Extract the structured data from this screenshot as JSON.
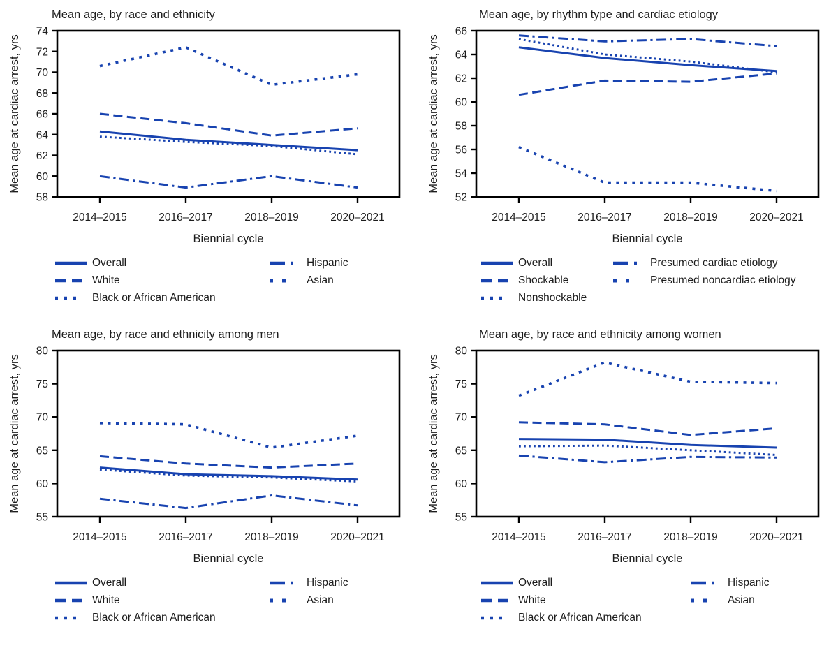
{
  "figure": {
    "background": "#ffffff",
    "line_color": "#1843b0",
    "text_color": "#1c1c1c",
    "axis_color": "#000000"
  },
  "chart_data": [
    {
      "type": "line",
      "title": "Mean age, by race and ethnicity",
      "xlabel": "Biennial cycle",
      "ylabel": "Mean age at cardiac arrest, yrs",
      "x": [
        "2014–2015",
        "2016–2017",
        "2018–2019",
        "2020–2021"
      ],
      "ylim": [
        58,
        74
      ],
      "yticks": [
        58,
        60,
        62,
        64,
        66,
        68,
        70,
        72,
        74
      ],
      "grid": false,
      "legend_position": "below",
      "legend_col_split": 3,
      "series": [
        {
          "name": "Overall",
          "line_style": "solid",
          "values": [
            64.3,
            63.5,
            63.0,
            62.5
          ]
        },
        {
          "name": "White",
          "line_style": "dashed",
          "values": [
            66.0,
            65.1,
            63.9,
            64.6
          ]
        },
        {
          "name": "Black or African American",
          "line_style": "dotted",
          "values": [
            63.8,
            63.3,
            62.9,
            62.1
          ]
        },
        {
          "name": "Hispanic",
          "line_style": "dashdot",
          "values": [
            60.0,
            58.9,
            60.0,
            58.9
          ]
        },
        {
          "name": "Asian",
          "line_style": "squaredot",
          "values": [
            70.6,
            72.4,
            68.8,
            69.8
          ]
        }
      ]
    },
    {
      "type": "line",
      "title": "Mean age, by rhythm type and cardiac etiology",
      "xlabel": "Biennial cycle",
      "ylabel": "Mean age at cardiac arrest, yrs",
      "x": [
        "2014–2015",
        "2016–2017",
        "2018–2019",
        "2020–2021"
      ],
      "ylim": [
        52,
        66
      ],
      "yticks": [
        52,
        54,
        56,
        58,
        60,
        62,
        64,
        66
      ],
      "grid": false,
      "legend_position": "below",
      "legend_col_split": 3,
      "series": [
        {
          "name": "Overall",
          "line_style": "solid",
          "values": [
            64.6,
            63.7,
            63.1,
            62.6
          ]
        },
        {
          "name": "Shockable",
          "line_style": "dashed",
          "values": [
            60.6,
            61.8,
            61.7,
            62.4
          ]
        },
        {
          "name": "Nonshockable",
          "line_style": "dotted",
          "values": [
            65.3,
            64.0,
            63.4,
            62.5
          ]
        },
        {
          "name": "Presumed cardiac etiology",
          "line_style": "dashdot",
          "values": [
            65.6,
            65.1,
            65.3,
            64.7
          ]
        },
        {
          "name": "Presumed noncardiac etiology",
          "line_style": "squaredot",
          "values": [
            56.2,
            53.2,
            53.2,
            52.5
          ]
        }
      ]
    },
    {
      "type": "line",
      "title": "Mean age, by race and ethnicity among men",
      "xlabel": "Biennial cycle",
      "ylabel": "Mean age at cardiac arrest, yrs",
      "x": [
        "2014–2015",
        "2016–2017",
        "2018–2019",
        "2020–2021"
      ],
      "ylim": [
        55,
        80
      ],
      "yticks": [
        55,
        60,
        65,
        70,
        75,
        80
      ],
      "grid": false,
      "legend_position": "below",
      "legend_col_split": 3,
      "series": [
        {
          "name": "Overall",
          "line_style": "solid",
          "values": [
            62.4,
            61.4,
            61.1,
            60.6
          ]
        },
        {
          "name": "White",
          "line_style": "dashed",
          "values": [
            64.1,
            63.0,
            62.4,
            63.0
          ]
        },
        {
          "name": "Black or African American",
          "line_style": "dotted",
          "values": [
            62.1,
            61.2,
            60.9,
            60.3
          ]
        },
        {
          "name": "Hispanic",
          "line_style": "dashdot",
          "values": [
            57.7,
            56.3,
            58.2,
            56.7
          ]
        },
        {
          "name": "Asian",
          "line_style": "squaredot",
          "values": [
            69.1,
            68.9,
            65.4,
            67.2
          ]
        }
      ]
    },
    {
      "type": "line",
      "title": "Mean age, by race and ethnicity among women",
      "xlabel": "Biennial cycle",
      "ylabel": "Mean age at cardiac arrest, yrs",
      "x": [
        "2014–2015",
        "2016–2017",
        "2018–2019",
        "2020–2021"
      ],
      "ylim": [
        55,
        80
      ],
      "yticks": [
        55,
        60,
        65,
        70,
        75,
        80
      ],
      "grid": false,
      "legend_position": "below",
      "legend_col_split": 3,
      "series": [
        {
          "name": "Overall",
          "line_style": "solid",
          "values": [
            66.7,
            66.6,
            65.8,
            65.4
          ]
        },
        {
          "name": "White",
          "line_style": "dashed",
          "values": [
            69.2,
            68.9,
            67.3,
            68.3
          ]
        },
        {
          "name": "Black or African American",
          "line_style": "dotted",
          "values": [
            65.6,
            65.7,
            65.0,
            64.3
          ]
        },
        {
          "name": "Hispanic",
          "line_style": "dashdot",
          "values": [
            64.2,
            63.2,
            64.0,
            63.9
          ]
        },
        {
          "name": "Asian",
          "line_style": "squaredot",
          "values": [
            73.2,
            78.2,
            75.3,
            75.1
          ]
        }
      ]
    }
  ]
}
